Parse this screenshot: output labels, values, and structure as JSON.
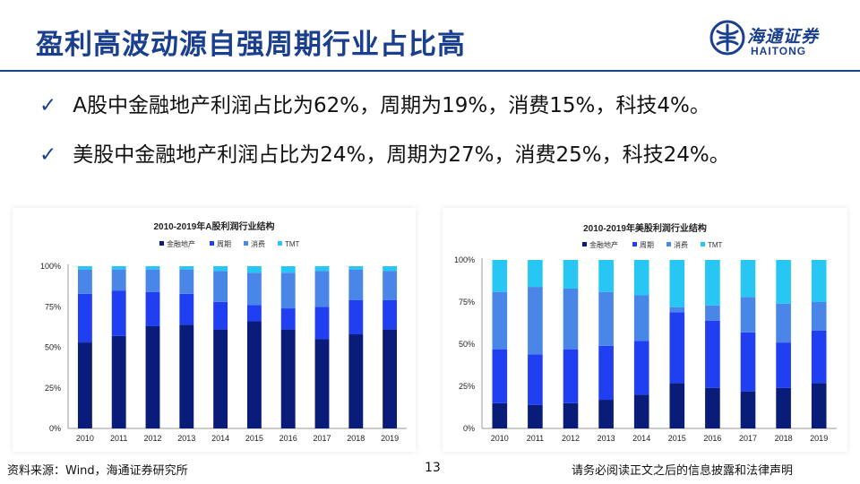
{
  "header": {
    "title": "盈利高波动源自强周期行业占比高",
    "logo_cn": "海通证券",
    "logo_en": "HAITONG"
  },
  "bullets": [
    "A股中金融地产利润占比为62%，周期为19%，消费15%，科技4%。",
    "美股中金融地产利润占比为24%，周期为27%，消费25%，科技24%。"
  ],
  "colors": {
    "brand": "#1b3f8f",
    "series": [
      "#0a1c7a",
      "#1f3ff0",
      "#4a86e8",
      "#27c6f5"
    ]
  },
  "footer": {
    "source": "资料来源：Wind，海通证券研究所",
    "page": "13",
    "disclaimer": "请务必阅读正文之后的信息披露和法律声明"
  },
  "chart_data": [
    {
      "type": "bar",
      "stacked": true,
      "title": "2010-2019年A股利润行业结构",
      "categories": [
        "2010",
        "2011",
        "2012",
        "2013",
        "2014",
        "2015",
        "2016",
        "2017",
        "2018",
        "2019"
      ],
      "series": [
        {
          "name": "金融地产",
          "values": [
            53,
            57,
            63,
            64,
            61,
            66,
            61,
            55,
            58,
            61
          ]
        },
        {
          "name": "周期",
          "values": [
            30,
            28,
            21,
            19,
            17,
            10,
            13,
            20,
            21,
            18
          ]
        },
        {
          "name": "消费",
          "values": [
            15,
            13,
            14,
            15,
            19,
            20,
            22,
            22,
            19,
            18
          ]
        },
        {
          "name": "TMT",
          "values": [
            2,
            2,
            2,
            2,
            3,
            4,
            4,
            3,
            2,
            3
          ]
        }
      ],
      "yticks": [
        "0%",
        "25%",
        "50%",
        "75%",
        "100%"
      ],
      "ylim": [
        0,
        100
      ],
      "legend": "top"
    },
    {
      "type": "bar",
      "stacked": true,
      "title": "2010-2019年美股利润行业结构",
      "categories": [
        "2010",
        "2011",
        "2012",
        "2013",
        "2014",
        "2015",
        "2016",
        "2017",
        "2018",
        "2019"
      ],
      "series": [
        {
          "name": "金融地产",
          "values": [
            15,
            14,
            15,
            17,
            20,
            27,
            24,
            22,
            24,
            27
          ]
        },
        {
          "name": "周期",
          "values": [
            32,
            30,
            32,
            32,
            32,
            42,
            40,
            35,
            27,
            31
          ]
        },
        {
          "name": "消费",
          "values": [
            34,
            40,
            36,
            32,
            27,
            3,
            9,
            21,
            23,
            17
          ]
        },
        {
          "name": "TMT",
          "values": [
            19,
            16,
            17,
            19,
            21,
            28,
            27,
            22,
            26,
            25
          ]
        }
      ],
      "yticks": [
        "0%",
        "25%",
        "50%",
        "75%",
        "100%"
      ],
      "ylim": [
        0,
        100
      ],
      "legend": "top"
    }
  ]
}
